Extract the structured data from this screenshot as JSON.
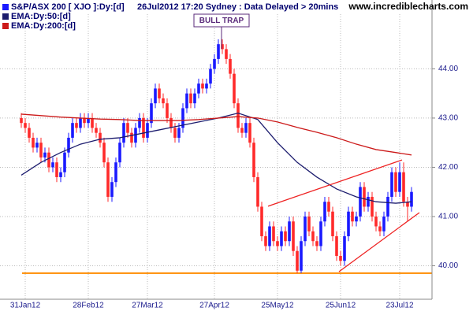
{
  "chart_data": {
    "type": "candlestick",
    "watermark": "www.incrediblecharts.com",
    "subtitle": "26Jul2012 17:20 Sydney : Data Delayed > 20mins",
    "annotation": "BULL TRAP",
    "categories": [
      null,
      "31Jan12",
      null,
      null,
      null,
      null,
      null,
      null,
      null,
      null,
      null,
      null,
      null,
      null,
      null,
      null,
      null,
      "28Feb12",
      null,
      null,
      null,
      null,
      null,
      null,
      null,
      null,
      null,
      null,
      null,
      null,
      null,
      null,
      "27Mar12",
      null,
      null,
      null,
      null,
      null,
      null,
      null,
      null,
      null,
      null,
      null,
      null,
      null,
      null,
      null,
      null,
      "27Apr12",
      null,
      null,
      null,
      null,
      null,
      null,
      null,
      null,
      null,
      null,
      null,
      null,
      null,
      null,
      null,
      "25May12",
      null,
      null,
      null,
      null,
      null,
      null,
      null,
      null,
      null,
      null,
      null,
      null,
      null,
      null,
      null,
      "25Jun12",
      null,
      null,
      null,
      null,
      null,
      null,
      null,
      null,
      null,
      null,
      null,
      null,
      null,
      null,
      "23Jul12",
      null,
      null,
      null
    ],
    "series": [
      {
        "name": "S&P/ASX 200 [ XJO ]:Dy:[d]",
        "up_color": "#1a1aff",
        "down_color": "#ff2a2a",
        "color": "#1a1aff",
        "open": [
          43.0,
          42.9,
          42.8,
          42.6,
          42.4,
          42.5,
          42.2,
          42.3,
          42.0,
          42.1,
          41.8,
          41.9,
          42.3,
          42.6,
          42.9,
          42.8,
          43.0,
          42.9,
          43.0,
          42.8,
          42.7,
          42.5,
          42.1,
          41.4,
          41.7,
          42.1,
          42.5,
          42.9,
          42.7,
          42.5,
          42.8,
          43.0,
          42.6,
          42.9,
          43.3,
          43.6,
          43.4,
          43.3,
          43.0,
          42.8,
          42.6,
          42.8,
          43.2,
          43.5,
          43.3,
          43.5,
          43.7,
          43.6,
          43.7,
          44.0,
          44.2,
          44.5,
          44.4,
          44.2,
          43.9,
          43.3,
          42.8,
          42.7,
          42.9,
          42.5,
          41.8,
          41.2,
          40.6,
          40.4,
          40.8,
          40.5,
          40.4,
          40.7,
          40.5,
          40.9,
          40.3,
          39.9,
          40.5,
          41.0,
          40.7,
          40.5,
          40.4,
          40.9,
          41.3,
          41.1,
          40.6,
          40.2,
          40.1,
          40.6,
          41.1,
          40.9,
          41.0,
          41.6,
          41.2,
          41.4,
          41.0,
          40.8,
          40.7,
          41.0,
          41.4,
          41.9,
          41.5,
          41.9,
          41.3,
          41.2
        ],
        "high": [
          43.1,
          43.0,
          42.9,
          42.7,
          42.6,
          42.6,
          42.4,
          42.4,
          42.2,
          42.2,
          42.0,
          42.4,
          42.7,
          43.0,
          43.0,
          43.1,
          43.1,
          43.1,
          43.1,
          42.9,
          42.8,
          42.6,
          42.2,
          41.8,
          42.2,
          42.6,
          43.0,
          43.0,
          42.8,
          42.9,
          43.1,
          43.1,
          43.0,
          43.4,
          43.7,
          43.7,
          43.5,
          43.4,
          43.1,
          42.9,
          42.9,
          43.3,
          43.6,
          43.6,
          43.6,
          43.8,
          43.8,
          43.8,
          44.1,
          44.3,
          44.6,
          44.6,
          44.5,
          44.3,
          44.0,
          43.4,
          42.9,
          43.0,
          43.0,
          42.6,
          41.9,
          41.3,
          40.7,
          40.9,
          40.9,
          40.6,
          40.8,
          40.8,
          41.0,
          41.0,
          40.4,
          40.6,
          41.1,
          41.1,
          40.8,
          40.6,
          41.0,
          41.4,
          41.4,
          41.2,
          40.7,
          40.3,
          40.7,
          41.2,
          41.2,
          41.1,
          41.7,
          41.7,
          41.5,
          41.5,
          41.1,
          40.9,
          41.1,
          41.5,
          42.0,
          42.0,
          42.1,
          42.1,
          41.4,
          41.6
        ],
        "low": [
          42.8,
          42.7,
          42.5,
          42.3,
          42.3,
          42.1,
          42.1,
          41.9,
          41.9,
          41.7,
          41.7,
          41.8,
          42.2,
          42.5,
          42.7,
          42.7,
          42.8,
          42.8,
          42.7,
          42.6,
          42.4,
          42.0,
          41.3,
          41.3,
          41.6,
          42.0,
          42.4,
          42.6,
          42.4,
          42.4,
          42.7,
          42.5,
          42.5,
          42.8,
          43.2,
          43.3,
          43.2,
          42.9,
          42.7,
          42.5,
          42.5,
          42.7,
          43.1,
          43.2,
          43.2,
          43.4,
          43.5,
          43.5,
          43.6,
          43.9,
          44.1,
          44.3,
          44.1,
          43.8,
          43.2,
          42.7,
          42.6,
          42.6,
          42.4,
          41.7,
          41.1,
          40.5,
          40.3,
          40.3,
          40.4,
          40.3,
          40.3,
          40.4,
          40.4,
          40.2,
          39.85,
          39.85,
          40.4,
          40.6,
          40.4,
          40.3,
          40.3,
          40.8,
          41.0,
          40.5,
          40.1,
          40.0,
          40.0,
          40.5,
          40.8,
          40.8,
          40.9,
          41.1,
          41.1,
          40.9,
          40.7,
          40.6,
          40.6,
          40.9,
          41.3,
          41.4,
          41.4,
          41.2,
          40.9,
          41.1
        ],
        "close": [
          42.9,
          42.8,
          42.6,
          42.4,
          42.5,
          42.2,
          42.3,
          42.0,
          42.1,
          41.8,
          41.9,
          42.3,
          42.6,
          42.9,
          42.8,
          43.0,
          42.9,
          43.0,
          42.8,
          42.7,
          42.5,
          42.1,
          41.4,
          41.7,
          42.1,
          42.5,
          42.9,
          42.7,
          42.5,
          42.8,
          43.0,
          42.6,
          42.9,
          43.3,
          43.6,
          43.4,
          43.3,
          43.0,
          42.8,
          42.6,
          42.8,
          43.2,
          43.5,
          43.3,
          43.5,
          43.7,
          43.6,
          43.7,
          44.0,
          44.2,
          44.5,
          44.4,
          44.2,
          43.9,
          43.3,
          42.8,
          42.7,
          42.9,
          42.5,
          41.8,
          41.2,
          40.6,
          40.4,
          40.8,
          40.5,
          40.4,
          40.7,
          40.5,
          40.9,
          40.3,
          39.9,
          40.5,
          41.0,
          40.7,
          40.5,
          40.4,
          40.9,
          41.3,
          41.1,
          40.6,
          40.2,
          40.1,
          40.6,
          41.1,
          40.9,
          41.0,
          41.6,
          41.2,
          41.4,
          41.0,
          40.8,
          40.7,
          41.0,
          41.4,
          41.9,
          41.5,
          41.9,
          41.3,
          41.2,
          41.5
        ]
      },
      {
        "name": "EMA:Dy:50:[d]",
        "color": "#1c1c6e",
        "x": [
          0,
          5,
          10,
          15,
          20,
          25,
          30,
          35,
          40,
          45,
          50,
          55,
          60,
          65,
          70,
          75,
          80,
          85,
          90,
          95,
          99
        ],
        "values": [
          41.84,
          42.1,
          42.3,
          42.47,
          42.57,
          42.6,
          42.68,
          42.76,
          42.84,
          42.92,
          43.0,
          43.1,
          42.97,
          42.5,
          42.1,
          41.8,
          41.56,
          41.4,
          41.3,
          41.27,
          41.3
        ]
      },
      {
        "name": "EMA:Dy:200:[d]",
        "color": "#cc1a1a",
        "x": [
          0,
          5,
          10,
          15,
          20,
          25,
          30,
          35,
          40,
          45,
          50,
          55,
          60,
          65,
          70,
          75,
          80,
          85,
          90,
          95,
          99
        ],
        "values": [
          43.08,
          43.05,
          43.02,
          43.0,
          42.98,
          42.97,
          42.95,
          42.95,
          42.95,
          42.97,
          43.0,
          43.03,
          43.0,
          42.92,
          42.81,
          42.71,
          42.6,
          42.47,
          42.36,
          42.3,
          42.25
        ]
      }
    ],
    "trendlines": [
      {
        "color": "#ee2222",
        "x": [
          62.6,
          96.6
        ],
        "values": [
          41.21,
          42.15
        ]
      },
      {
        "color": "#ee2222",
        "x": [
          80.6,
          101
        ],
        "values": [
          39.88,
          41.08
        ]
      }
    ],
    "support": {
      "color": "#ff8c00",
      "value": 39.85
    },
    "ylim": [
      39.32,
      45.11
    ],
    "yticks": [
      {
        "value": 40,
        "label": "40.00"
      },
      {
        "value": 41,
        "label": "41.00"
      },
      {
        "value": 42,
        "label": "42.00"
      },
      {
        "value": 43,
        "label": "43.00"
      },
      {
        "value": 44,
        "label": "44.00"
      }
    ],
    "grid": true
  }
}
